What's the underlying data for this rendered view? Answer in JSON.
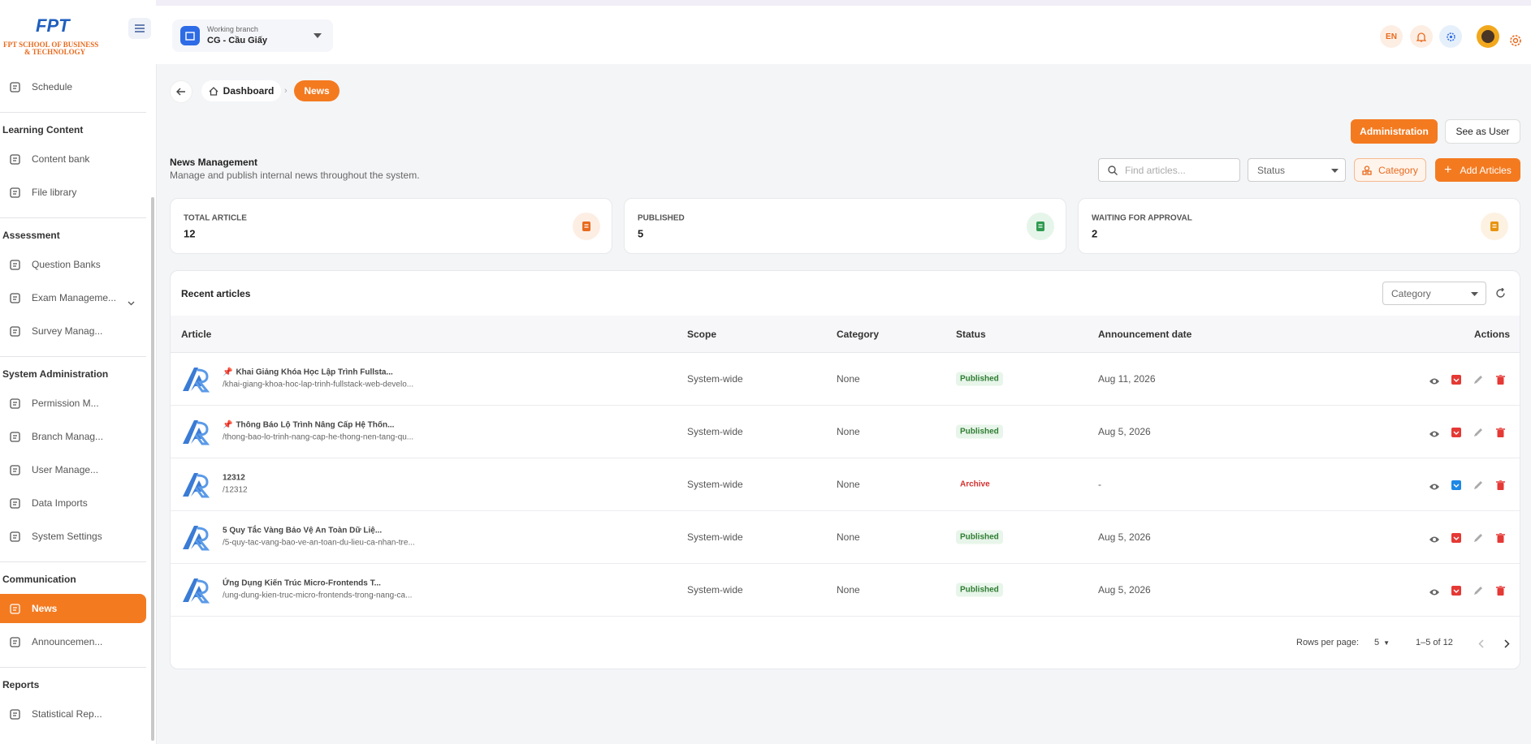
{
  "logo": {
    "brand": "FPT",
    "line1": "FPT SCHOOL OF BUSINESS",
    "line2": "& TECHNOLOGY"
  },
  "branch": {
    "label": "Working branch",
    "name": "CG - Cầu Giấy"
  },
  "language": "EN",
  "sidebar": {
    "top": [
      {
        "label": "Schedule"
      }
    ],
    "sections": [
      {
        "title": "Learning Content",
        "items": [
          {
            "label": "Content bank"
          },
          {
            "label": "File library"
          }
        ]
      },
      {
        "title": "Assessment",
        "items": [
          {
            "label": "Question Banks"
          },
          {
            "label": "Exam Manageme...",
            "expandable": true
          },
          {
            "label": "Survey Manag..."
          }
        ]
      },
      {
        "title": "System Administration",
        "items": [
          {
            "label": "Permission M..."
          },
          {
            "label": "Branch Manag..."
          },
          {
            "label": "User Manage..."
          },
          {
            "label": "Data Imports"
          },
          {
            "label": "System Settings"
          }
        ]
      },
      {
        "title": "Communication",
        "items": [
          {
            "label": "News",
            "active": true
          },
          {
            "label": "Announcemen..."
          }
        ]
      },
      {
        "title": "Reports",
        "items": [
          {
            "label": "Statistical Rep..."
          }
        ]
      }
    ]
  },
  "breadcrumb": [
    "Dashboard",
    "News"
  ],
  "view_buttons": [
    "Administration",
    "See as User"
  ],
  "page": {
    "title": "News Management",
    "subtitle": "Manage and publish internal news throughout the system."
  },
  "toolbar": {
    "search": "Find articles...",
    "status": "Status",
    "category": "Category",
    "add": "Add Articles"
  },
  "stats": [
    {
      "label": "TOTAL ARTICLE",
      "value": 12
    },
    {
      "label": "PUBLISHED",
      "value": 5
    },
    {
      "label": "WAITING FOR APPROVAL",
      "value": 2
    }
  ],
  "table": {
    "title": "Recent articles",
    "filter": "Category",
    "columns": [
      "Article",
      "Scope",
      "Category",
      "Status",
      "Announcement date",
      "Actions"
    ],
    "rows": [
      {
        "title": "Khai Giảng Khóa Học Lập Trình Fullsta...",
        "slug": "/khai-giang-khoa-hoc-lap-trinh-fullstack-web-develo...",
        "pinned": true,
        "scope": "System-wide",
        "category": "None",
        "status": "Published",
        "date": "Aug 11, 2026"
      },
      {
        "title": "Thông Báo Lộ Trình Nâng Cấp Hệ Thốn...",
        "slug": "/thong-bao-lo-trinh-nang-cap-he-thong-nen-tang-qu...",
        "pinned": true,
        "scope": "System-wide",
        "category": "None",
        "status": "Published",
        "date": "Aug 5, 2026"
      },
      {
        "title": "12312",
        "slug": "/12312",
        "pinned": false,
        "scope": "System-wide",
        "category": "None",
        "status": "Archive",
        "date": "-"
      },
      {
        "title": "5 Quy Tắc Vàng Bảo Vệ An Toàn Dữ Liệ...",
        "slug": "/5-quy-tac-vang-bao-ve-an-toan-du-lieu-ca-nhan-tre...",
        "pinned": false,
        "scope": "System-wide",
        "category": "None",
        "status": "Published",
        "date": "Aug 5, 2026"
      },
      {
        "title": "Ứng Dụng Kiến Trúc Micro-Frontends T...",
        "slug": "/ung-dung-kien-truc-micro-frontends-trong-nang-ca...",
        "pinned": false,
        "scope": "System-wide",
        "category": "None",
        "status": "Published",
        "date": "Aug 5, 2026"
      }
    ]
  },
  "pagination": {
    "label": "Rows per page:",
    "rows": 5,
    "range": "1–5 of 12"
  }
}
